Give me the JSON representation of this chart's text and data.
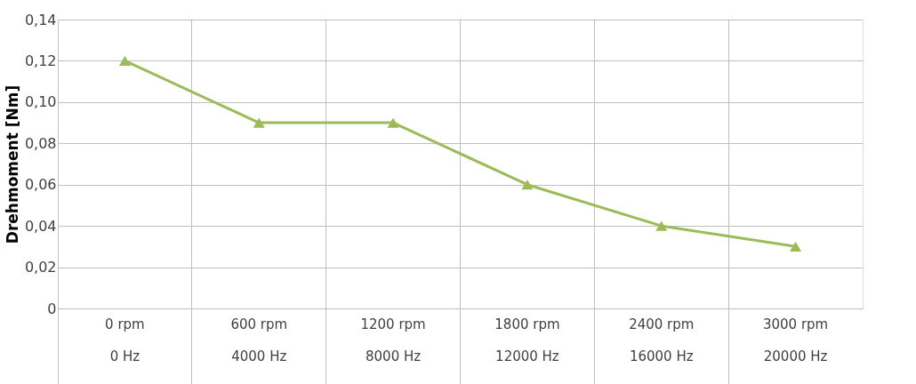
{
  "chart_data": {
    "type": "line",
    "ylabel": "Drehmoment [Nm]",
    "categories": [
      "0 rpm\n0 Hz",
      "600 rpm\n4000 Hz",
      "1200 rpm\n8000 Hz",
      "1800 rpm\n12000 Hz",
      "2400 rpm\n16000 Hz",
      "3000 rpm\n20000 Hz"
    ],
    "series": [
      {
        "color": "#9bbb59",
        "values": [
          0.12,
          0.09,
          0.09,
          0.06,
          0.04,
          0.03
        ]
      }
    ],
    "ylim": [
      0,
      0.14
    ],
    "yticks": [
      0,
      {
        "value": 0.02,
        "label": "0,02"
      },
      {
        "value": 0.04,
        "label": "0,04"
      },
      {
        "value": 0.06,
        "label": "0,06"
      },
      {
        "value": 0.08,
        "label": "0,08"
      },
      {
        "value": 0.1,
        "label": "0,10"
      },
      {
        "value": 0.12,
        "label": "0,12"
      },
      {
        "value": 0.14,
        "label": "0,14"
      }
    ],
    "grid": true,
    "marker": "triangle",
    "line_style": "solid"
  }
}
